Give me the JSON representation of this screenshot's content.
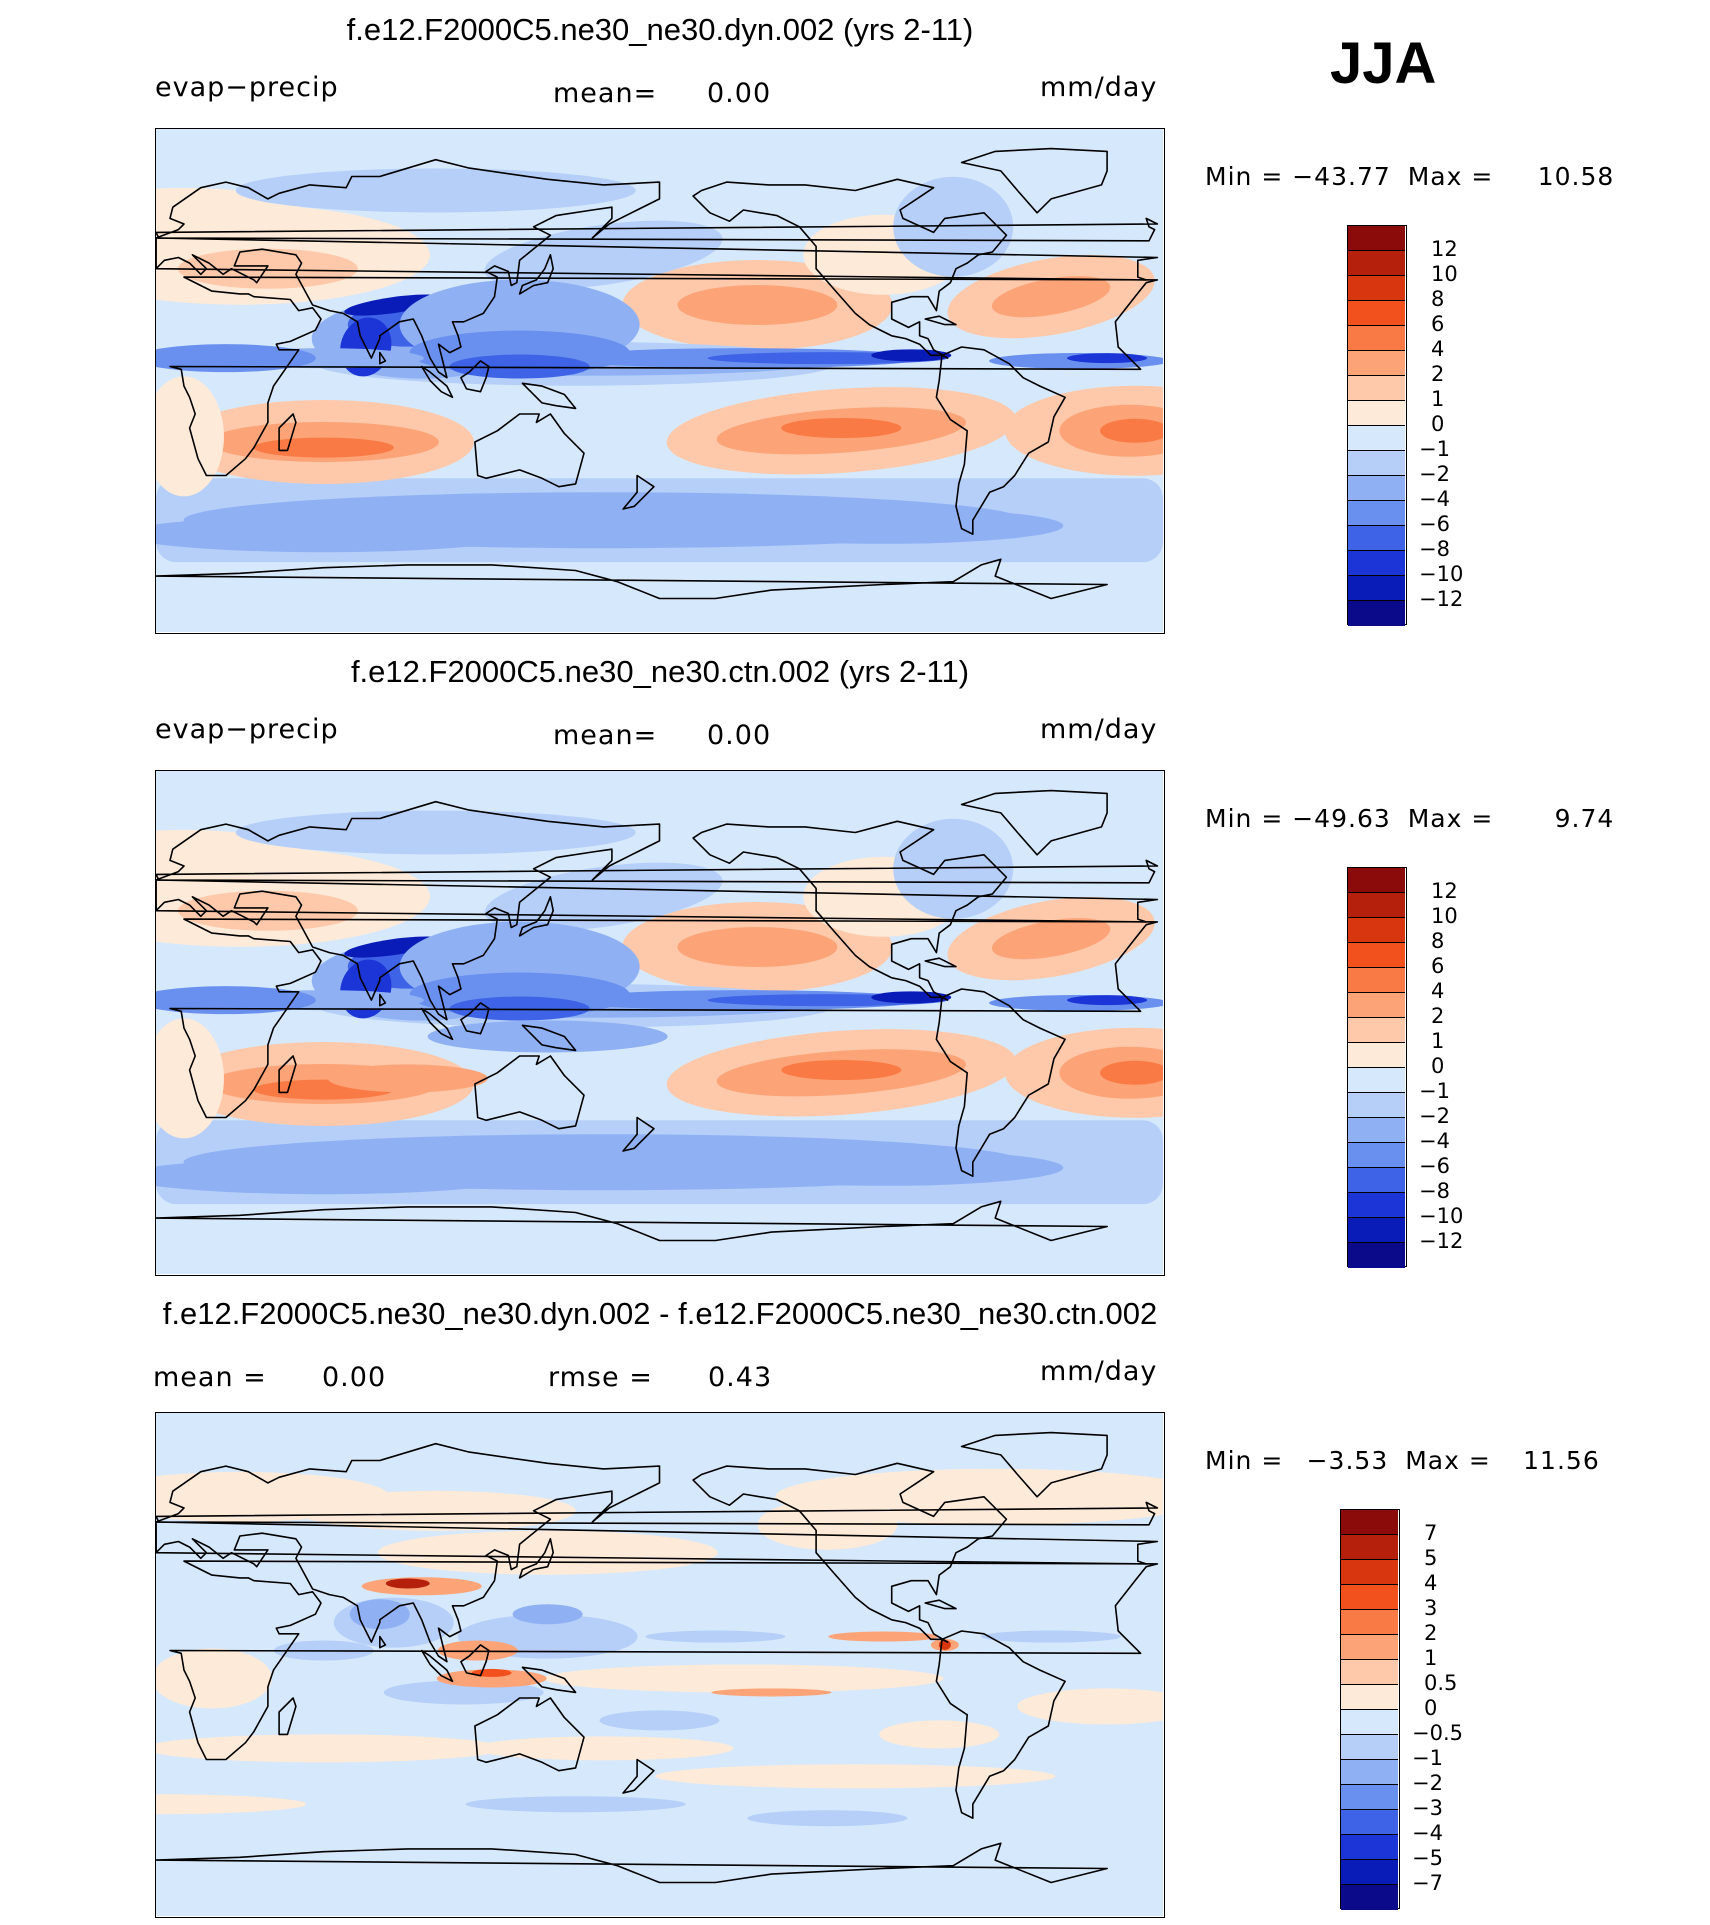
{
  "season": "JJA",
  "panels": [
    {
      "title": "f.e12.F2000C5.ne30_ne30.dyn.002 (yrs 2-11)",
      "left_label": "evap−precip",
      "center_label": "mean=",
      "center_value": "0.00",
      "units": "mm/day",
      "min_label": "Min",
      "min_value": "−43.77",
      "max_label": "Max",
      "max_value": "10.58",
      "map_name": "panel-dyn-map"
    },
    {
      "title": "f.e12.F2000C5.ne30_ne30.ctn.002 (yrs 2-11)",
      "left_label": "evap−precip",
      "center_label": "mean=",
      "center_value": "0.00",
      "units": "mm/day",
      "min_label": "Min",
      "min_value": "−49.63",
      "max_label": "Max",
      "max_value": "9.74",
      "map_name": "panel-ctn-map"
    },
    {
      "title": "f.e12.F2000C5.ne30_ne30.dyn.002 - f.e12.F2000C5.ne30_ne30.ctn.002",
      "left_label": "mean =",
      "left_value": "0.00",
      "center_label": "rmse =",
      "center_value": "0.43",
      "units": "mm/day",
      "min_label": "Min",
      "min_value": "−3.53",
      "max_label": "Max",
      "max_value": "11.56",
      "map_name": "panel-diff-map"
    }
  ],
  "colorbars": {
    "field": {
      "labels": [
        "12",
        "10",
        "8",
        "6",
        "4",
        "2",
        "1",
        "0",
        "−1",
        "−2",
        "−4",
        "−6",
        "−8",
        "−10",
        "−12"
      ],
      "colors": [
        "#8b0a0a",
        "#b5200c",
        "#d8360e",
        "#f2501d",
        "#fa7a45",
        "#fca477",
        "#fdc9aa",
        "#feead8",
        "#d6e8fb",
        "#b5cff8",
        "#8fb1f4",
        "#6a90ef",
        "#3f63e6",
        "#1c35d6",
        "#0a1cb8",
        "#0a0a8b"
      ]
    },
    "diff": {
      "labels": [
        "7",
        "5",
        "4",
        "3",
        "2",
        "1",
        "0.5",
        "0",
        "−0.5",
        "−1",
        "−2",
        "−3",
        "−4",
        "−5",
        "−7"
      ],
      "colors": [
        "#8b0a0a",
        "#b5200c",
        "#d8360e",
        "#f2501d",
        "#fa7a45",
        "#fca477",
        "#fdc9aa",
        "#feead8",
        "#d6e8fb",
        "#b5cff8",
        "#8fb1f4",
        "#6a90ef",
        "#3f63e6",
        "#1c35d6",
        "#0a1cb8",
        "#0a0a8b"
      ]
    }
  }
}
